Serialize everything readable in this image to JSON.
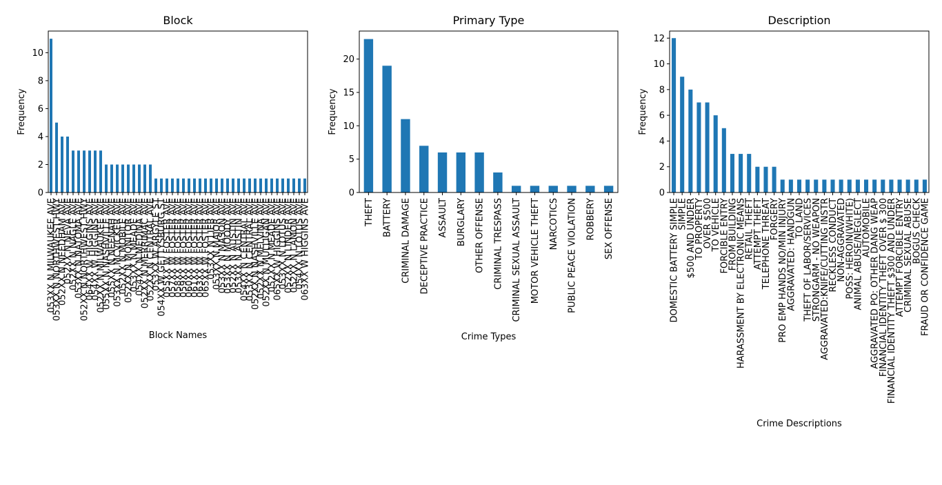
{
  "chart_data": [
    {
      "type": "bar",
      "title": "Block",
      "xlabel": "Block Names",
      "ylabel": "Frequency",
      "categories": [
        "053XX N MILWAUKEE AVE",
        "053XX N NORTHWEST HWY",
        "052XX N NEEDHAM AVE",
        "052XX N NEVA AVE",
        "052XX N NAGLE AVE",
        "053XX N NATOMA AVE",
        "052XX N NORTHWEST HWY",
        "064XX W HIGGINS AVE",
        "054XX W HIGGINS AVE",
        "052XX N MILWAUKEE AVE",
        "055XX N NASHVILLE AVE",
        "055XX N NEENAH AVE",
        "053XX N MCVICKER AVE",
        "052XX N MOBILE AVE",
        "052XX N MONITOR AVE",
        "053XX N MEADE AVE",
        "054XX N MEDINA AVE",
        "052XX N MERRIMAC AVE",
        "052XX N CENTRAL AVE",
        "053XX W ARGYLE ST",
        "054XX W GETTYSBURG ST",
        "055XX W FOSTER AVE",
        "057XX W FOSTER AVE",
        "058XX W FOSTER AVE",
        "059XX W FOSTER AVE",
        "060XX W FOSTER AVE",
        "061XX W FOSTER AVE",
        "063XX W FOSTER AVE",
        "065XX W FOSTER AVE",
        "053XX N LIEB AVE",
        "053XX N MAJOR AVE",
        "053XX N MASON AVE",
        "053XX N MOODY AVE",
        "052XX N AUSTIN AVE",
        "053XX N AUSTIN AVE",
        "054XX N CENTRAL AVE",
        "053XX N CENTRAL AVE",
        "052XX N NASHVILLE AVE",
        "052XX N MELVINA AVE",
        "052XX N MULLIGAN AVE",
        "052XX N MEADE AVE",
        "065XX W HIGGINS AVE",
        "053XX N LOTUS AVE",
        "052XX N LINDER AVE",
        "052XX N LAMON AVE",
        "054XX N LOTUS AVE",
        "063XX W HIGGINS AVE"
      ],
      "values": [
        11,
        5,
        4,
        4,
        3,
        3,
        3,
        3,
        3,
        3,
        2,
        2,
        2,
        2,
        2,
        2,
        2,
        2,
        2,
        1,
        1,
        1,
        1,
        1,
        1,
        1,
        1,
        1,
        1,
        1,
        1,
        1,
        1,
        1,
        1,
        1,
        1,
        1,
        1,
        1,
        1,
        1,
        1,
        1,
        1,
        1,
        1
      ],
      "color": "#1f77b4",
      "ylim": [
        0,
        11.55
      ],
      "yticks": [
        0,
        2,
        4,
        6,
        8,
        10
      ]
    },
    {
      "type": "bar",
      "title": "Primary Type",
      "xlabel": "Crime Types",
      "ylabel": "Frequency",
      "categories": [
        "THEFT",
        "BATTERY",
        "CRIMINAL DAMAGE",
        "DECEPTIVE PRACTICE",
        "ASSAULT",
        "BURGLARY",
        "OTHER OFFENSE",
        "CRIMINAL TRESPASS",
        "CRIMINAL SEXUAL ASSAULT",
        "MOTOR VEHICLE THEFT",
        "NARCOTICS",
        "PUBLIC PEACE VIOLATION",
        "ROBBERY",
        "SEX OFFENSE"
      ],
      "values": [
        23,
        19,
        11,
        7,
        6,
        6,
        6,
        3,
        1,
        1,
        1,
        1,
        1,
        1
      ],
      "color": "#1f77b4",
      "ylim": [
        0,
        24.2
      ],
      "yticks": [
        0,
        5,
        10,
        15,
        20
      ]
    },
    {
      "type": "bar",
      "title": "Description",
      "xlabel": "Crime Descriptions",
      "ylabel": "Frequency",
      "categories": [
        "DOMESTIC BATTERY SIMPLE",
        "SIMPLE",
        "$500 AND UNDER",
        "TO PROPERTY",
        "OVER $500",
        "TO VEHICLE",
        "FORCIBLE ENTRY",
        "FROM BUILDING",
        "HARASSMENT BY ELECTRONIC MEANS",
        "RETAIL THEFT",
        "ATTEMPT THEFT",
        "TELEPHONE THREAT",
        "FORGERY",
        "PRO EMP HANDS NO/MIN INJURY",
        "AGGRAVATED: HANDGUN",
        "TO LAND",
        "THEFT OF LABOR/SERVICES",
        "STRONGARM - NO WEAPON",
        "AGGRAVATED:KNIFE/CUTTING INSTR",
        "RECKLESS CONDUCT",
        "NON-AGGRAVATED",
        "POSS: HEROIN(WHITE)",
        "ANIMAL ABUSE/NEGLECT",
        "AUTOMOBILE",
        "AGGRAVATED PO: OTHER DANG WEAP",
        "FINANCIAL IDENTITY THEFT OVER $ 300",
        "FINANCIAL IDENTITY THEFT $300 AND UNDER",
        "ATTEMPT FORCIBLE ENTRY",
        "CRIMINAL SEXUAL ABUSE",
        "BOGUS CHECK",
        "FRAUD OR CONFIDENCE GAME"
      ],
      "values": [
        12,
        9,
        8,
        7,
        7,
        6,
        5,
        3,
        3,
        3,
        2,
        2,
        2,
        1,
        1,
        1,
        1,
        1,
        1,
        1,
        1,
        1,
        1,
        1,
        1,
        1,
        1,
        1,
        1,
        1,
        1
      ],
      "color": "#1f77b4",
      "ylim": [
        0,
        12.55
      ],
      "yticks": [
        0,
        2,
        4,
        6,
        8,
        10,
        12
      ]
    }
  ]
}
